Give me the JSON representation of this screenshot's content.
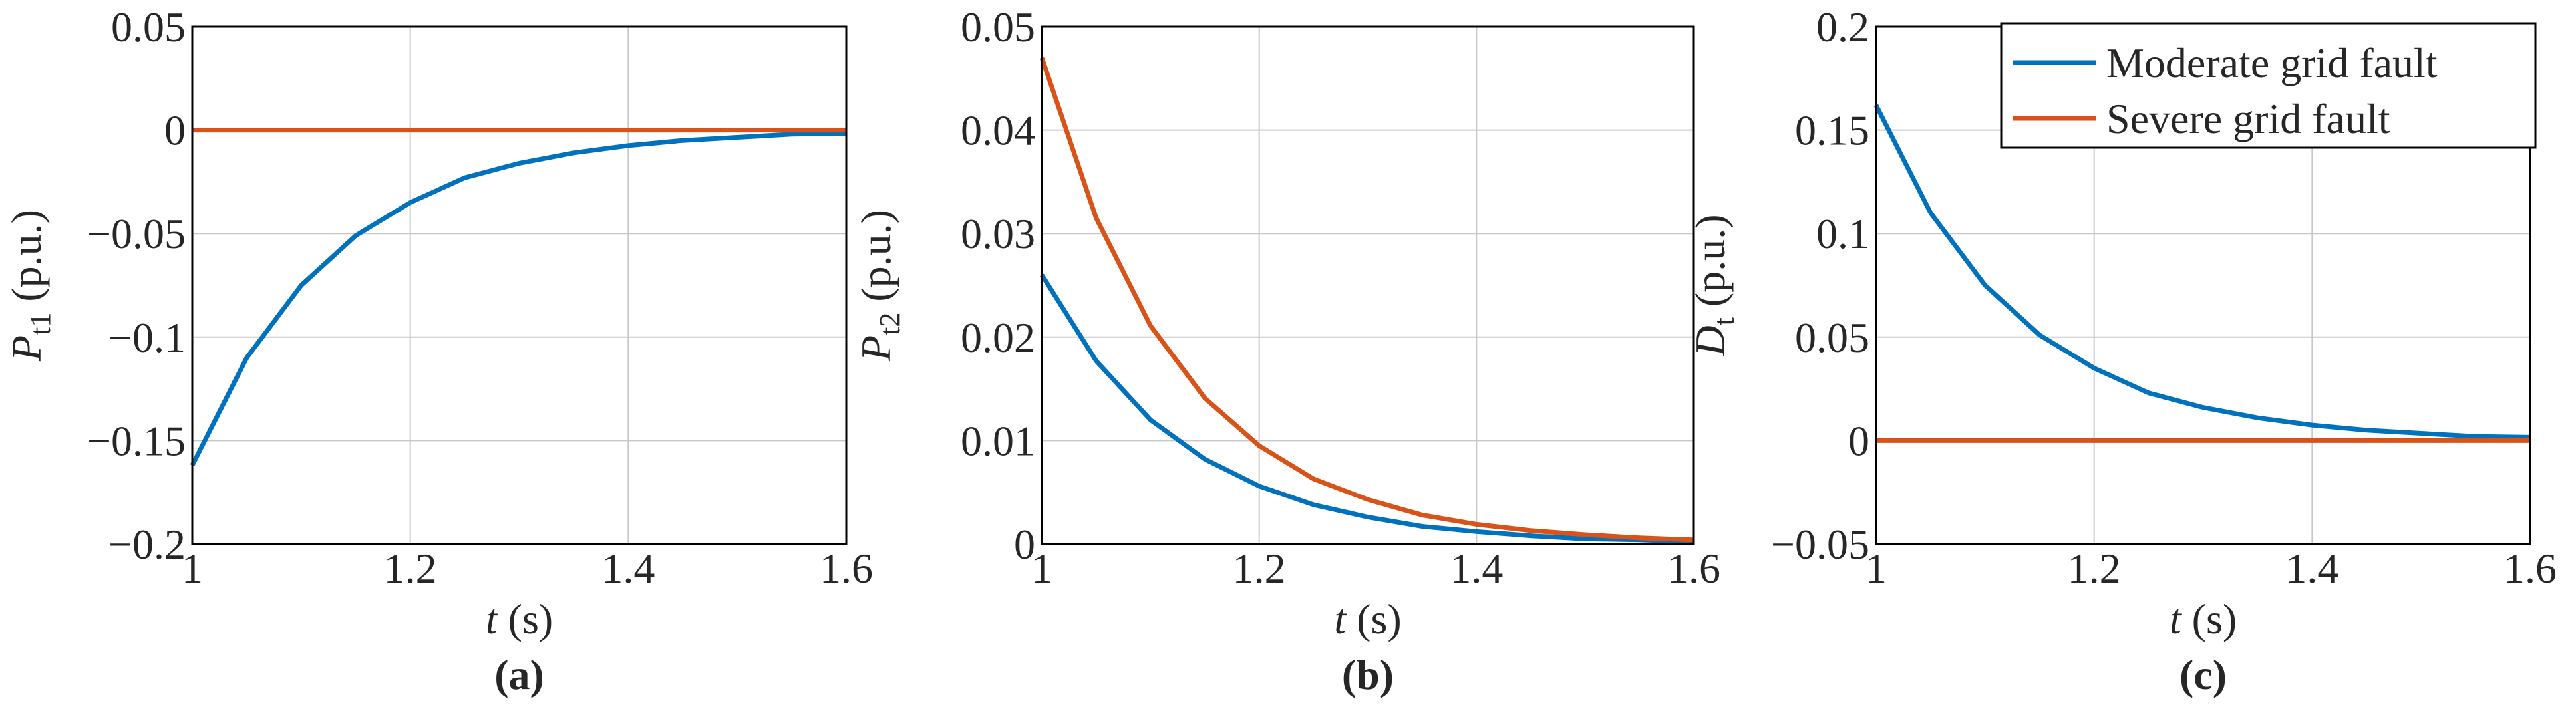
{
  "chart_data": [
    {
      "type": "line",
      "caption": "(a)",
      "xlabel": "t",
      "xlabel_unit": "(s)",
      "ylabel": "P",
      "ylabel_sub": "t1",
      "ylabel_unit": "(p.u.)",
      "x": [
        1,
        1.05,
        1.1,
        1.15,
        1.2,
        1.25,
        1.3,
        1.35,
        1.4,
        1.45,
        1.5,
        1.55,
        1.6
      ],
      "xlim": [
        1,
        1.6
      ],
      "xticks": [
        1,
        1.2,
        1.4,
        1.6
      ],
      "ylim": [
        -0.2,
        0.05
      ],
      "yticks": [
        {
          "value": -0.2,
          "label": "−0.2"
        },
        {
          "value": -0.15,
          "label": "−0.15"
        },
        {
          "value": -0.1,
          "label": "−0.1"
        },
        {
          "value": -0.05,
          "label": "−0.05"
        },
        0,
        0.05
      ],
      "grid": true,
      "series": [
        {
          "name": "Moderate grid fault",
          "color": "#0072bd",
          "values": [
            -0.162,
            -0.11,
            -0.075,
            -0.051,
            -0.035,
            -0.023,
            -0.016,
            -0.011,
            -0.0075,
            -0.005,
            -0.0035,
            -0.002,
            -0.0016
          ]
        },
        {
          "name": "Severe grid fault",
          "color": "#d95319",
          "values": [
            0,
            0,
            0,
            0,
            0,
            0,
            0,
            0,
            0,
            0,
            0,
            0,
            0
          ]
        }
      ]
    },
    {
      "type": "line",
      "caption": "(b)",
      "xlabel": "t",
      "xlabel_unit": "(s)",
      "ylabel": "P",
      "ylabel_sub": "t2",
      "ylabel_unit": "(p.u.)",
      "x": [
        1,
        1.05,
        1.1,
        1.15,
        1.2,
        1.25,
        1.3,
        1.35,
        1.4,
        1.45,
        1.5,
        1.55,
        1.6
      ],
      "xlim": [
        1,
        1.6
      ],
      "xticks": [
        1,
        1.2,
        1.4,
        1.6
      ],
      "ylim": [
        0,
        0.05
      ],
      "yticks": [
        0,
        0.01,
        0.02,
        0.03,
        0.04,
        0.05
      ],
      "grid": true,
      "series": [
        {
          "name": "Moderate grid fault",
          "color": "#0072bd",
          "values": [
            0.026,
            0.0177,
            0.012,
            0.0082,
            0.0056,
            0.0038,
            0.0026,
            0.0017,
            0.0012,
            0.0008,
            0.0005,
            0.0004,
            0.0002
          ]
        },
        {
          "name": "Severe grid fault",
          "color": "#d95319",
          "values": [
            0.047,
            0.0315,
            0.0211,
            0.0141,
            0.0095,
            0.0063,
            0.0043,
            0.0028,
            0.0019,
            0.0013,
            0.0009,
            0.0006,
            0.0004
          ]
        }
      ]
    },
    {
      "type": "line",
      "caption": "(c)",
      "xlabel": "t",
      "xlabel_unit": "(s)",
      "ylabel": "D",
      "ylabel_sub": "t",
      "ylabel_unit": "(p.u.)",
      "x": [
        1,
        1.05,
        1.1,
        1.15,
        1.2,
        1.25,
        1.3,
        1.35,
        1.4,
        1.45,
        1.5,
        1.55,
        1.6
      ],
      "xlim": [
        1,
        1.6
      ],
      "xticks": [
        1,
        1.2,
        1.4,
        1.6
      ],
      "ylim": [
        -0.05,
        0.2
      ],
      "yticks": [
        {
          "value": -0.05,
          "label": "−0.05"
        },
        0,
        0.05,
        0.1,
        0.15,
        0.2
      ],
      "grid": true,
      "legend": "upper right",
      "series": [
        {
          "name": "Moderate grid fault",
          "color": "#0072bd",
          "values": [
            0.162,
            0.11,
            0.075,
            0.051,
            0.035,
            0.023,
            0.016,
            0.011,
            0.0075,
            0.005,
            0.0035,
            0.002,
            0.0016
          ]
        },
        {
          "name": "Severe grid fault",
          "color": "#d95319",
          "values": [
            0,
            0,
            0,
            0,
            0,
            0,
            0,
            0,
            0,
            0,
            0,
            0,
            0
          ]
        }
      ]
    }
  ]
}
